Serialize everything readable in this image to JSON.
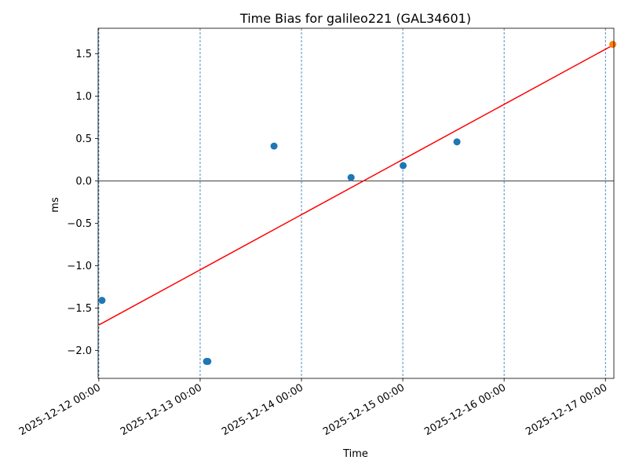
{
  "chart_data": {
    "type": "scatter",
    "title": "Time Bias for galileo221 (GAL34601)",
    "xlabel": "Time",
    "ylabel": "ms",
    "xlim": [
      "2025-12-11 23:50",
      "2025-12-17 02:00"
    ],
    "ylim": [
      -2.33,
      1.8
    ],
    "x_ticks": [
      "2025-12-12 00:00",
      "2025-12-13 00:00",
      "2025-12-14 00:00",
      "2025-12-15 00:00",
      "2025-12-16 00:00",
      "2025-12-17 00:00"
    ],
    "y_ticks": [
      -2.0,
      -1.5,
      -1.0,
      -0.5,
      0.0,
      0.5,
      1.0,
      1.5
    ],
    "y_tick_labels": [
      "−2.0",
      "−1.5",
      "−1.0",
      "−0.5",
      "0.0",
      "0.5",
      "1.0",
      "1.5"
    ],
    "grid": "vertical dashed lines at x ticks",
    "zero_line": true,
    "series": [
      {
        "kind": "points",
        "color": "#1f77b4",
        "points": [
          {
            "x": "2025-12-12 00:45",
            "y": -1.41
          },
          {
            "x": "2025-12-13 01:30",
            "y": -2.13
          },
          {
            "x": "2025-12-13 01:50",
            "y": -2.13
          },
          {
            "x": "2025-12-13 17:30",
            "y": 0.41
          },
          {
            "x": "2025-12-14 11:45",
            "y": 0.04
          },
          {
            "x": "2025-12-15 00:05",
            "y": 0.18
          },
          {
            "x": "2025-12-15 12:50",
            "y": 0.46
          }
        ]
      },
      {
        "kind": "line",
        "color": "#ff0000",
        "points": [
          {
            "x": "2025-12-12 00:00",
            "y": -1.7
          },
          {
            "x": "2025-12-17 01:45",
            "y": 1.6
          }
        ]
      },
      {
        "kind": "points",
        "color": "#ff7f0e",
        "points": [
          {
            "x": "2025-12-17 01:45",
            "y": 1.61
          }
        ]
      }
    ]
  }
}
